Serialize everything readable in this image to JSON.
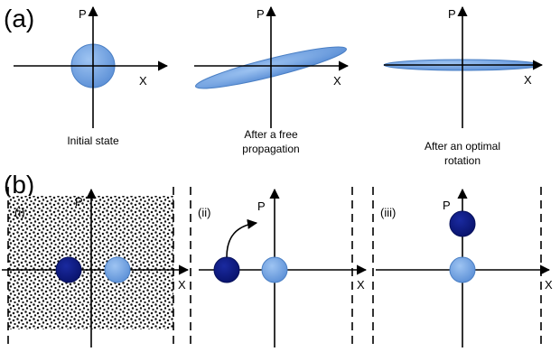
{
  "panel_a": {
    "label": "(a)",
    "diagrams": [
      {
        "x_label": "X",
        "p_label": "P",
        "caption": [
          "Initial state"
        ]
      },
      {
        "x_label": "X",
        "p_label": "P",
        "caption": [
          "After a free",
          "propagation"
        ]
      },
      {
        "x_label": "X",
        "p_label": "P",
        "caption": [
          "After an optimal",
          "rotation"
        ]
      }
    ]
  },
  "panel_b": {
    "label": "(b)",
    "subpanels": [
      {
        "label": "(i)",
        "x_label": "X",
        "p_label": "P"
      },
      {
        "label": "(ii)",
        "x_label": "X",
        "p_label": "P"
      },
      {
        "label": "(iii)",
        "x_label": "X",
        "p_label": "P"
      }
    ]
  },
  "colors": {
    "light_blue": "#6fa2e4",
    "light_blue_edge": "#4a7fc4",
    "dark_blue": "#0d1a86",
    "noise_dot": "#111111"
  }
}
